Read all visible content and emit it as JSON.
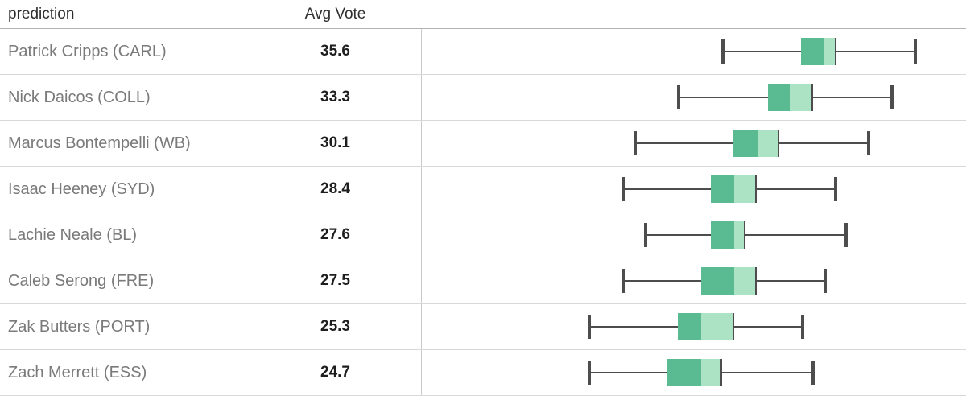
{
  "header": {
    "prediction_label": "prediction",
    "avg_vote_label": "Avg Vote"
  },
  "colors": {
    "box_dark": "#5ABA92",
    "box_light": "#ABE3C4",
    "whisker": "#4D4D4D",
    "name_text": "#7A7A7A",
    "value_text": "#1E1E1E",
    "header_text": "#2E2E2E",
    "header_border": "#B3B3B3",
    "row_border": "#D8D8D8",
    "panel_border": "#C9C9C9"
  },
  "chart_data": {
    "type": "boxplot",
    "orientation": "horizontal",
    "columns": [
      "prediction",
      "Avg Vote"
    ],
    "x_units": "percent_of_chart_panel_width",
    "axis_labels_visible": false,
    "rows": [
      {
        "name": "Patrick Cripps (CARL)",
        "avg_vote": "35.6",
        "box_pct": {
          "low": 56.8,
          "q1": 71.6,
          "median": 75.8,
          "q3": 78.1,
          "high": 93.1
        }
      },
      {
        "name": "Nick Daicos (COLL)",
        "avg_vote": "33.3",
        "box_pct": {
          "low": 48.5,
          "q1": 65.4,
          "median": 69.5,
          "q3": 73.7,
          "high": 88.8
        }
      },
      {
        "name": "Marcus Bontempelli (WB)",
        "avg_vote": "30.1",
        "box_pct": {
          "low": 40.2,
          "q1": 58.8,
          "median": 63.3,
          "q3": 67.4,
          "high": 84.4
        }
      },
      {
        "name": "Isaac Heeney (SYD)",
        "avg_vote": "28.4",
        "box_pct": {
          "low": 38.1,
          "q1": 54.5,
          "median": 58.9,
          "q3": 63.1,
          "high": 78.1
        }
      },
      {
        "name": "Lachie Neale (BL)",
        "avg_vote": "27.6",
        "box_pct": {
          "low": 42.3,
          "q1": 54.5,
          "median": 58.9,
          "q3": 60.9,
          "high": 80.1
        }
      },
      {
        "name": "Caleb Serong (FRE)",
        "avg_vote": "27.5",
        "box_pct": {
          "low": 38.1,
          "q1": 52.7,
          "median": 58.9,
          "q3": 63.1,
          "high": 76.1
        }
      },
      {
        "name": "Zak Butters (PORT)",
        "avg_vote": "25.3",
        "box_pct": {
          "low": 31.6,
          "q1": 48.3,
          "median": 52.7,
          "q3": 58.8,
          "high": 71.9
        }
      },
      {
        "name": "Zach Merrett (ESS)",
        "avg_vote": "24.7",
        "box_pct": {
          "low": 31.6,
          "q1": 46.4,
          "median": 52.7,
          "q3": 56.6,
          "high": 73.9
        }
      }
    ]
  }
}
